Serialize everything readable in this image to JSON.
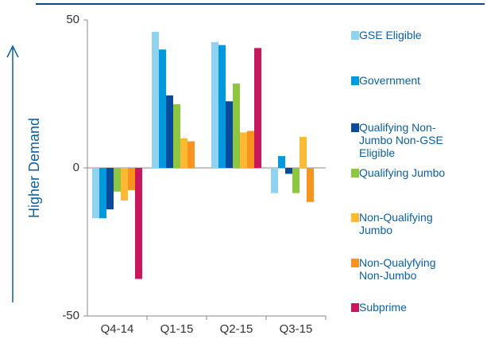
{
  "chart_data": {
    "type": "bar",
    "ylabel": "Higher Demand",
    "categories": [
      "Q4-14",
      "Q1-15",
      "Q2-15",
      "Q3-15"
    ],
    "series": [
      {
        "name": "GSE Eligible",
        "color": "#8fd3f0",
        "values": [
          -17,
          46,
          42.5,
          -8.5
        ]
      },
      {
        "name": "Government",
        "color": "#0099dd",
        "values": [
          -17,
          40,
          41.5,
          4
        ]
      },
      {
        "name": "Qualifying Non-Jumbo Non-GSE Eligible",
        "color": "#0a4a9a",
        "values": [
          -14,
          24.5,
          22.5,
          -2
        ]
      },
      {
        "name": "Qualifying Jumbo",
        "color": "#8dc63f",
        "values": [
          -8,
          21.5,
          28.5,
          -8.5
        ]
      },
      {
        "name": "Non-Qualifying Jumbo",
        "color": "#fdb933",
        "values": [
          -11,
          10,
          12,
          10.5
        ]
      },
      {
        "name": "Non-Qualyfying Non-Jumbo",
        "color": "#f7941d",
        "values": [
          -7.5,
          9,
          12.5,
          -11.5
        ]
      },
      {
        "name": "Subprime",
        "color": "#c8175d",
        "values": [
          -37.5,
          null,
          40.5,
          null
        ]
      }
    ],
    "ylim": [
      -50,
      50
    ],
    "yticks": [
      -50,
      0,
      50
    ]
  }
}
